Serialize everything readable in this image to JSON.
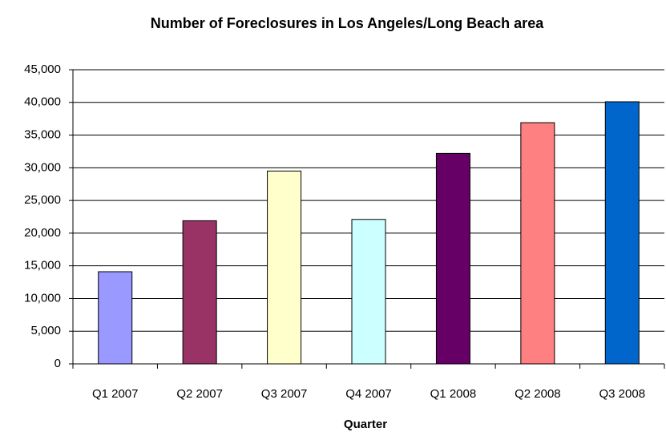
{
  "chart_data": {
    "type": "bar",
    "title": "Number of Foreclosures in Los Angeles/Long Beach area",
    "x_label": "Quarter",
    "categories": [
      "Q1 2007",
      "Q2 2007",
      "Q3 2007",
      "Q4 2007",
      "Q1 2008",
      "Q2 2008",
      "Q3 2008"
    ],
    "values": [
      14100,
      21900,
      29500,
      22100,
      32200,
      36900,
      40100
    ],
    "colors": [
      "#9999ff",
      "#993366",
      "#ffffcc",
      "#ccffff",
      "#660066",
      "#ff8080",
      "#0066cc"
    ],
    "ylim": [
      0,
      45000
    ],
    "yticks": [
      0,
      {
        "value": 5000,
        "label": "5,000"
      },
      {
        "value": 10000,
        "label": "10,000"
      },
      {
        "value": 15000,
        "label": "15,000"
      },
      {
        "value": 20000,
        "label": "20,000"
      },
      {
        "value": 25000,
        "label": "25,000"
      },
      {
        "value": 30000,
        "label": "30,000"
      },
      {
        "value": 35000,
        "label": "35,000"
      },
      {
        "value": 40000,
        "label": "40,000"
      },
      {
        "value": 45000,
        "label": "45,000"
      }
    ],
    "grid": true
  }
}
